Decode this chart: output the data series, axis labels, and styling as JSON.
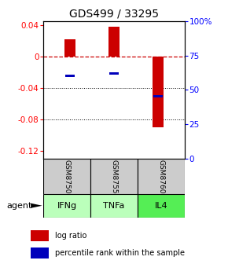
{
  "title": "GDS499 / 33295",
  "ylim_left": [
    -0.13,
    0.045
  ],
  "ylim_right": [
    0,
    100
  ],
  "yticks_left": [
    0.04,
    0,
    -0.04,
    -0.08,
    -0.12
  ],
  "yticks_right": [
    100,
    75,
    50,
    25,
    0
  ],
  "ytick_labels_left": [
    "0.04",
    "0",
    "-0.04",
    "-0.08",
    "-0.12"
  ],
  "ytick_labels_right": [
    "100%",
    "75",
    "50",
    "25",
    "0"
  ],
  "categories": [
    "IFNg",
    "TNFa",
    "IL4"
  ],
  "sample_ids": [
    "GSM8750",
    "GSM8755",
    "GSM8760"
  ],
  "log_ratios": [
    0.022,
    0.038,
    -0.09
  ],
  "percentile_ranks": [
    60,
    62,
    45
  ],
  "bar_color": "#cc0000",
  "pct_color": "#0000bb",
  "sample_bg_color": "#cccccc",
  "zero_line_color": "#cc0000",
  "title_fontsize": 10,
  "tick_fontsize": 7.5,
  "bar_width": 0.25,
  "pct_bar_height": 0.003,
  "pct_bar_width": 0.22,
  "agent_colors": [
    "#bbffbb",
    "#bbffbb",
    "#55ee55"
  ]
}
